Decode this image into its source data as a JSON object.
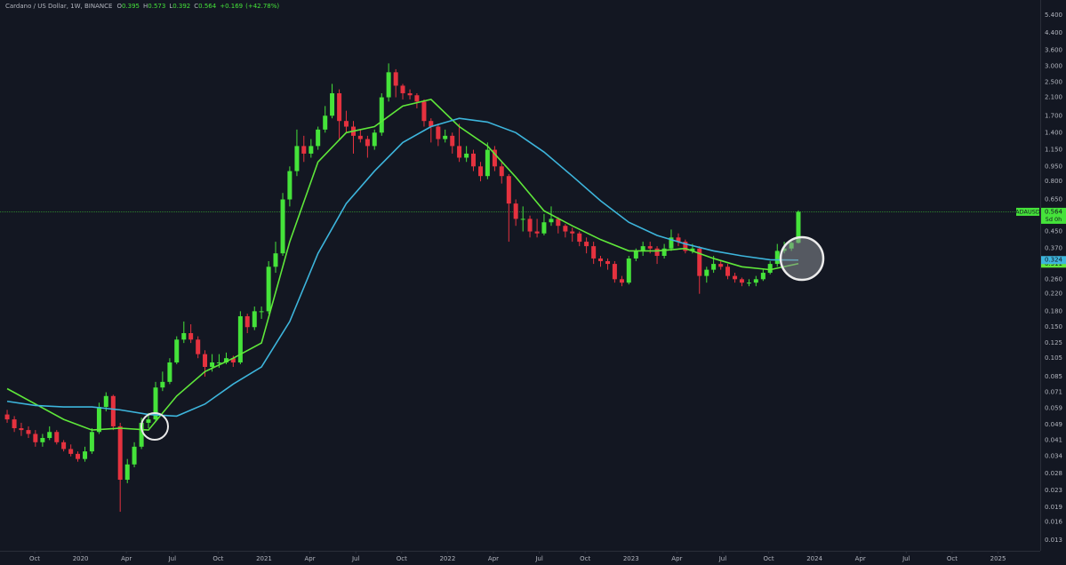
{
  "chart_data": {
    "type": "candlestick",
    "header": {
      "symbol": "Cardano / US Dollar, 1W, BINANCE",
      "ohlc_labels": [
        "O",
        "H",
        "L",
        "C"
      ],
      "change": {
        "value": 0.169,
        "label": "+0.169"
      },
      "change_pct": {
        "value": 42.78,
        "label": "(+42.78%)"
      }
    },
    "ticker": "ADAUSD",
    "countdown": "5d 0h",
    "log_y": true,
    "grid": false,
    "background": "#131722",
    "up_color": "#45e33a",
    "down_color": "#e5323f",
    "xlim": [
      2019.561,
      2025.23
    ],
    "ylim": [
      0.0115,
      6.42
    ],
    "xticks": [
      {
        "value": 2019.75,
        "label": "Oct"
      },
      2020,
      {
        "value": 2020.25,
        "label": "Apr"
      },
      {
        "value": 2020.5,
        "label": "Jul"
      },
      {
        "value": 2020.75,
        "label": "Oct"
      },
      2021,
      {
        "value": 2021.25,
        "label": "Apr"
      },
      {
        "value": 2021.5,
        "label": "Jul"
      },
      {
        "value": 2021.75,
        "label": "Oct"
      },
      2022,
      {
        "value": 2022.25,
        "label": "Apr"
      },
      {
        "value": 2022.5,
        "label": "Jul"
      },
      {
        "value": 2022.75,
        "label": "Oct"
      },
      2023,
      {
        "value": 2023.25,
        "label": "Apr"
      },
      {
        "value": 2023.5,
        "label": "Jul"
      },
      {
        "value": 2023.75,
        "label": "Oct"
      },
      2024,
      {
        "value": 2024.25,
        "label": "Apr"
      },
      {
        "value": 2024.5,
        "label": "Jul"
      },
      {
        "value": 2024.75,
        "label": "Oct"
      },
      2025
    ],
    "yticks": [
      {
        "value": 5.4,
        "label": "5.400"
      },
      {
        "value": 4.4,
        "label": "4.400"
      },
      {
        "value": 3.6,
        "label": "3.600"
      },
      {
        "value": 3.0,
        "label": "3.000"
      },
      {
        "value": 2.5,
        "label": "2.500"
      },
      {
        "value": 2.1,
        "label": "2.100"
      },
      {
        "value": 1.7,
        "label": "1.700"
      },
      {
        "value": 1.4,
        "label": "1.400"
      },
      {
        "value": 1.15,
        "label": "1.150"
      },
      {
        "value": 0.95,
        "label": "0.950"
      },
      {
        "value": 0.8,
        "label": "0.800"
      },
      {
        "value": 0.65,
        "label": "0.650"
      },
      {
        "value": 0.45,
        "label": "0.450"
      },
      {
        "value": 0.37,
        "label": "0.370"
      },
      {
        "value": 0.26,
        "label": "0.260"
      },
      {
        "value": 0.22,
        "label": "0.220"
      },
      {
        "value": 0.18,
        "label": "0.180"
      },
      {
        "value": 0.15,
        "label": "0.150"
      },
      {
        "value": 0.125,
        "label": "0.125"
      },
      {
        "value": 0.105,
        "label": "0.105"
      },
      {
        "value": 0.085,
        "label": "0.085"
      },
      {
        "value": 0.071,
        "label": "0.071"
      },
      {
        "value": 0.059,
        "label": "0.059"
      },
      {
        "value": 0.049,
        "label": "0.049"
      },
      {
        "value": 0.041,
        "label": "0.041"
      },
      {
        "value": 0.034,
        "label": "0.034"
      },
      {
        "value": 0.028,
        "label": "0.028"
      },
      {
        "value": 0.023,
        "label": "0.023"
      },
      {
        "value": 0.019,
        "label": "0.019"
      },
      {
        "value": 0.016,
        "label": "0.016"
      },
      {
        "value": 0.013,
        "label": "0.013"
      }
    ],
    "candles": {
      "x": [
        2019.6,
        2019.639,
        2019.677,
        2019.716,
        2019.754,
        2019.793,
        2019.831,
        2019.87,
        2019.908,
        2019.947,
        2019.985,
        2020.024,
        2020.062,
        2020.101,
        2020.139,
        2020.178,
        2020.216,
        2020.255,
        2020.293,
        2020.332,
        2020.37,
        2020.409,
        2020.447,
        2020.486,
        2020.524,
        2020.563,
        2020.601,
        2020.64,
        2020.678,
        2020.717,
        2020.755,
        2020.794,
        2020.832,
        2020.871,
        2020.909,
        2020.948,
        2020.986,
        2021.025,
        2021.063,
        2021.102,
        2021.14,
        2021.179,
        2021.217,
        2021.256,
        2021.294,
        2021.333,
        2021.371,
        2021.41,
        2021.448,
        2021.487,
        2021.525,
        2021.564,
        2021.602,
        2021.641,
        2021.679,
        2021.718,
        2021.756,
        2021.795,
        2021.833,
        2021.872,
        2021.91,
        2021.949,
        2021.987,
        2022.026,
        2022.064,
        2022.103,
        2022.141,
        2022.18,
        2022.218,
        2022.257,
        2022.295,
        2022.334,
        2022.372,
        2022.411,
        2022.449,
        2022.488,
        2022.526,
        2022.565,
        2022.603,
        2022.642,
        2022.68,
        2022.719,
        2022.757,
        2022.796,
        2022.834,
        2022.873,
        2022.911,
        2022.95,
        2022.988,
        2023.027,
        2023.065,
        2023.104,
        2023.142,
        2023.181,
        2023.219,
        2023.258,
        2023.296,
        2023.335,
        2023.373,
        2023.412,
        2023.45,
        2023.489,
        2023.527,
        2023.566,
        2023.604,
        2023.643,
        2023.681,
        2023.72,
        2023.758,
        2023.797,
        2023.835,
        2023.874,
        2023.912
      ],
      "open": [
        0.055,
        0.052,
        0.047,
        0.046,
        0.044,
        0.04,
        0.042,
        0.045,
        0.04,
        0.037,
        0.035,
        0.033,
        0.036,
        0.045,
        0.06,
        0.068,
        0.048,
        0.026,
        0.031,
        0.038,
        0.05,
        0.052,
        0.075,
        0.08,
        0.1,
        0.13,
        0.14,
        0.13,
        0.11,
        0.095,
        0.1,
        0.1,
        0.105,
        0.1,
        0.17,
        0.15,
        0.18,
        0.18,
        0.3,
        0.35,
        0.65,
        0.9,
        1.2,
        1.1,
        1.2,
        1.45,
        1.7,
        2.2,
        1.6,
        1.5,
        1.35,
        1.3,
        1.2,
        1.4,
        2.1,
        2.8,
        2.4,
        2.2,
        2.15,
        2.0,
        1.6,
        1.5,
        1.3,
        1.35,
        1.2,
        1.05,
        1.1,
        0.95,
        0.85,
        1.15,
        0.95,
        0.85,
        0.62,
        0.52,
        0.52,
        0.45,
        0.44,
        0.5,
        0.52,
        0.48,
        0.45,
        0.44,
        0.4,
        0.38,
        0.33,
        0.32,
        0.31,
        0.26,
        0.25,
        0.33,
        0.36,
        0.38,
        0.37,
        0.34,
        0.37,
        0.42,
        0.4,
        0.36,
        0.37,
        0.27,
        0.29,
        0.31,
        0.3,
        0.27,
        0.26,
        0.25,
        0.25,
        0.26,
        0.28,
        0.31,
        0.36,
        0.37,
        0.395
      ],
      "high": [
        0.058,
        0.054,
        0.05,
        0.048,
        0.046,
        0.044,
        0.048,
        0.046,
        0.041,
        0.039,
        0.036,
        0.038,
        0.047,
        0.063,
        0.071,
        0.069,
        0.05,
        0.033,
        0.04,
        0.053,
        0.056,
        0.08,
        0.09,
        0.105,
        0.135,
        0.16,
        0.155,
        0.135,
        0.115,
        0.11,
        0.11,
        0.112,
        0.108,
        0.18,
        0.175,
        0.19,
        0.19,
        0.32,
        0.4,
        0.7,
        0.95,
        1.45,
        1.35,
        1.3,
        1.5,
        1.9,
        2.45,
        2.3,
        1.8,
        1.6,
        1.45,
        1.35,
        1.45,
        2.2,
        3.1,
        2.9,
        2.45,
        2.3,
        2.2,
        2.05,
        1.65,
        1.55,
        1.45,
        1.4,
        1.55,
        1.2,
        1.15,
        1.0,
        1.25,
        1.2,
        1.0,
        0.87,
        0.65,
        0.6,
        0.54,
        0.52,
        0.55,
        0.6,
        0.53,
        0.49,
        0.47,
        0.45,
        0.42,
        0.4,
        0.34,
        0.33,
        0.32,
        0.27,
        0.34,
        0.37,
        0.4,
        0.4,
        0.38,
        0.39,
        0.46,
        0.44,
        0.41,
        0.39,
        0.38,
        0.3,
        0.34,
        0.32,
        0.31,
        0.28,
        0.265,
        0.26,
        0.27,
        0.29,
        0.32,
        0.39,
        0.4,
        0.4,
        0.573
      ],
      "low": [
        0.05,
        0.045,
        0.043,
        0.042,
        0.038,
        0.038,
        0.041,
        0.039,
        0.036,
        0.034,
        0.032,
        0.032,
        0.035,
        0.044,
        0.057,
        0.046,
        0.018,
        0.025,
        0.03,
        0.037,
        0.047,
        0.051,
        0.072,
        0.078,
        0.098,
        0.125,
        0.125,
        0.105,
        0.085,
        0.09,
        0.094,
        0.098,
        0.095,
        0.098,
        0.14,
        0.145,
        0.165,
        0.175,
        0.28,
        0.34,
        0.6,
        0.85,
        1.0,
        1.05,
        1.15,
        1.4,
        1.65,
        1.3,
        1.4,
        1.1,
        1.25,
        1.05,
        1.15,
        1.35,
        2.0,
        2.1,
        2.05,
        2.05,
        1.85,
        1.5,
        1.25,
        1.2,
        1.25,
        1.1,
        1.0,
        1.0,
        0.9,
        0.8,
        0.82,
        0.9,
        0.78,
        0.4,
        0.48,
        0.45,
        0.42,
        0.42,
        0.43,
        0.48,
        0.44,
        0.42,
        0.4,
        0.38,
        0.35,
        0.31,
        0.3,
        0.29,
        0.25,
        0.24,
        0.245,
        0.32,
        0.34,
        0.35,
        0.31,
        0.33,
        0.36,
        0.38,
        0.35,
        0.35,
        0.22,
        0.25,
        0.28,
        0.29,
        0.26,
        0.25,
        0.24,
        0.24,
        0.24,
        0.255,
        0.275,
        0.3,
        0.35,
        0.36,
        0.392
      ],
      "close": [
        0.052,
        0.047,
        0.046,
        0.044,
        0.04,
        0.042,
        0.045,
        0.04,
        0.037,
        0.035,
        0.033,
        0.036,
        0.045,
        0.06,
        0.068,
        0.048,
        0.026,
        0.031,
        0.038,
        0.05,
        0.052,
        0.075,
        0.08,
        0.1,
        0.13,
        0.14,
        0.13,
        0.11,
        0.095,
        0.1,
        0.1,
        0.105,
        0.1,
        0.17,
        0.15,
        0.18,
        0.18,
        0.3,
        0.35,
        0.65,
        0.9,
        1.2,
        1.1,
        1.2,
        1.45,
        1.7,
        2.2,
        1.6,
        1.5,
        1.35,
        1.3,
        1.2,
        1.4,
        2.1,
        2.8,
        2.4,
        2.2,
        2.15,
        2.0,
        1.6,
        1.5,
        1.3,
        1.35,
        1.2,
        1.05,
        1.1,
        0.95,
        0.85,
        1.15,
        0.95,
        0.85,
        0.62,
        0.52,
        0.52,
        0.45,
        0.44,
        0.5,
        0.52,
        0.48,
        0.45,
        0.44,
        0.4,
        0.38,
        0.33,
        0.32,
        0.31,
        0.26,
        0.25,
        0.33,
        0.36,
        0.38,
        0.37,
        0.34,
        0.37,
        0.42,
        0.4,
        0.36,
        0.37,
        0.27,
        0.29,
        0.31,
        0.3,
        0.27,
        0.26,
        0.25,
        0.25,
        0.26,
        0.28,
        0.31,
        0.36,
        0.37,
        0.395,
        0.564
      ]
    },
    "lines": [
      {
        "color": "#5fe83a",
        "x": [
          2019.6,
          2019.754,
          2019.908,
          2020.062,
          2020.216,
          2020.37,
          2020.524,
          2020.678,
          2020.832,
          2020.986,
          2021.14,
          2021.294,
          2021.448,
          2021.602,
          2021.756,
          2021.91,
          2022.064,
          2022.218,
          2022.372,
          2022.526,
          2022.68,
          2022.834,
          2022.988,
          2023.142,
          2023.296,
          2023.45,
          2023.604,
          2023.758,
          2023.912
        ],
        "values": [
          0.074,
          0.062,
          0.052,
          0.046,
          0.047,
          0.046,
          0.068,
          0.09,
          0.105,
          0.125,
          0.4,
          1.0,
          1.4,
          1.5,
          1.9,
          2.05,
          1.5,
          1.2,
          0.84,
          0.57,
          0.48,
          0.41,
          0.36,
          0.36,
          0.37,
          0.33,
          0.3,
          0.29,
          0.311
        ]
      },
      {
        "color": "#3db5dc",
        "x": [
          2019.6,
          2019.754,
          2019.908,
          2020.062,
          2020.216,
          2020.37,
          2020.524,
          2020.678,
          2020.832,
          2020.986,
          2021.14,
          2021.294,
          2021.448,
          2021.602,
          2021.756,
          2021.91,
          2022.064,
          2022.218,
          2022.372,
          2022.526,
          2022.68,
          2022.834,
          2022.988,
          2023.142,
          2023.296,
          2023.45,
          2023.604,
          2023.758,
          2023.912
        ],
        "values": [
          0.064,
          0.061,
          0.06,
          0.06,
          0.058,
          0.055,
          0.054,
          0.062,
          0.078,
          0.095,
          0.16,
          0.35,
          0.62,
          0.9,
          1.25,
          1.5,
          1.65,
          1.58,
          1.4,
          1.12,
          0.85,
          0.64,
          0.5,
          0.43,
          0.39,
          0.36,
          0.34,
          0.325,
          0.324
        ]
      }
    ]
  }
}
